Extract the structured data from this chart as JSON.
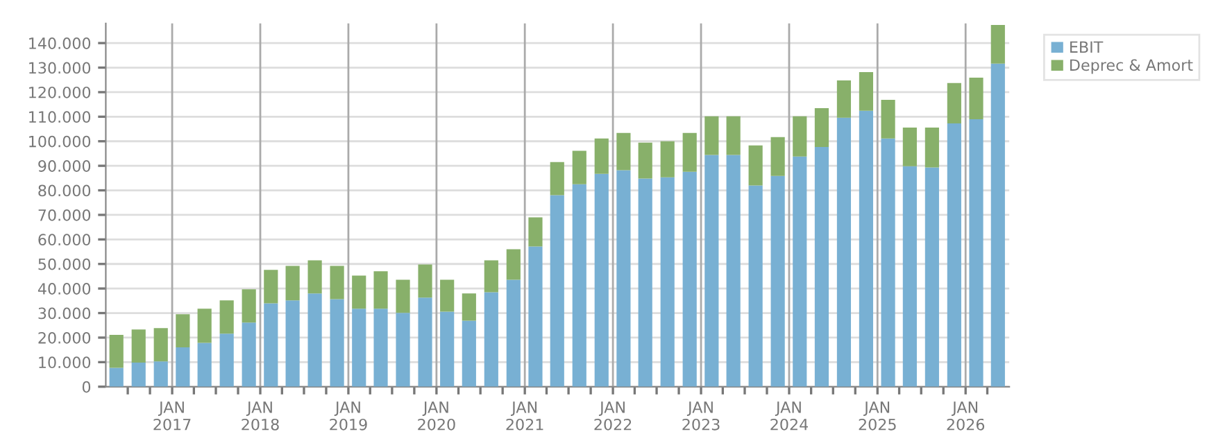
{
  "chart_data": {
    "type": "bar",
    "stacked": true,
    "x": [
      "2016-05-15",
      "2016-08-15",
      "2016-11-15",
      "2017-02-14",
      "2017-05-15",
      "2017-08-15",
      "2017-11-15",
      "2018-02-14",
      "2018-05-15",
      "2018-08-15",
      "2018-11-15",
      "2019-02-14",
      "2019-05-15",
      "2019-08-15",
      "2019-11-15",
      "2020-02-14",
      "2020-05-15",
      "2020-08-15",
      "2020-11-15",
      "2021-02-14",
      "2021-05-15",
      "2021-08-15",
      "2021-11-15",
      "2022-02-14",
      "2022-05-15",
      "2022-08-15",
      "2022-11-15",
      "2023-02-14",
      "2023-05-15",
      "2023-08-15",
      "2023-11-15",
      "2024-02-14",
      "2024-05-15",
      "2024-08-15",
      "2024-11-15",
      "2025-02-14",
      "2025-05-15",
      "2025-08-15",
      "2025-11-15",
      "2026-02-14",
      "2026-05-15"
    ],
    "series": [
      {
        "name": "EBIT",
        "color": "#78b0d3",
        "values": [
          7700,
          9800,
          10300,
          16000,
          17900,
          21600,
          26100,
          34000,
          35200,
          38000,
          35700,
          31800,
          31800,
          30100,
          36300,
          30600,
          26900,
          38500,
          43600,
          57100,
          78000,
          82500,
          86700,
          88200,
          84800,
          85300,
          87600,
          94400,
          94400,
          82000,
          85900,
          93800,
          97700,
          109600,
          112400,
          101100,
          89800,
          89300,
          107300,
          109000,
          131600
        ]
      },
      {
        "name": "Deprec & Amort",
        "color": "#88b06a",
        "values": [
          13400,
          13500,
          13600,
          13500,
          13900,
          13600,
          13600,
          13600,
          14000,
          13500,
          13500,
          13500,
          15200,
          13500,
          13500,
          13000,
          11100,
          13000,
          12400,
          11900,
          13500,
          13600,
          14400,
          15200,
          14600,
          14700,
          15800,
          15800,
          15800,
          16300,
          15800,
          16400,
          15800,
          15200,
          15800,
          15800,
          15800,
          16300,
          16400,
          16900,
          15800
        ]
      }
    ],
    "ylim": [
      0,
      148000
    ],
    "yticks": [
      0,
      {
        "value": 10000,
        "label": "10.000"
      },
      {
        "value": 20000,
        "label": "20.000"
      },
      {
        "value": 30000,
        "label": "30.000"
      },
      {
        "value": 40000,
        "label": "40.000"
      },
      {
        "value": 50000,
        "label": "50.000"
      },
      {
        "value": 60000,
        "label": "60.000"
      },
      {
        "value": 70000,
        "label": "70.000"
      },
      {
        "value": 80000,
        "label": "80.000"
      },
      {
        "value": 90000,
        "label": "90.000"
      },
      {
        "value": 100000,
        "label": "100.000"
      },
      {
        "value": 110000,
        "label": "110.000"
      },
      {
        "value": 120000,
        "label": "120.000"
      },
      {
        "value": 130000,
        "label": "130.000"
      },
      {
        "value": 140000,
        "label": "140.000"
      }
    ],
    "xlim": [
      "2016-04-01",
      "2026-07-01"
    ],
    "xticks": [
      {
        "value": "2016-07-01",
        "label": null
      },
      {
        "value": "2016-10-01",
        "label": null
      },
      {
        "value": "2017-01-01",
        "label": "JAN\n2017"
      },
      {
        "value": "2017-04-01",
        "label": null
      },
      {
        "value": "2017-07-01",
        "label": null
      },
      {
        "value": "2017-10-01",
        "label": null
      },
      {
        "value": "2018-01-01",
        "label": "JAN\n2018"
      },
      {
        "value": "2018-04-01",
        "label": null
      },
      {
        "value": "2018-07-01",
        "label": null
      },
      {
        "value": "2018-10-01",
        "label": null
      },
      {
        "value": "2019-01-01",
        "label": "JAN\n2019"
      },
      {
        "value": "2019-04-01",
        "label": null
      },
      {
        "value": "2019-07-01",
        "label": null
      },
      {
        "value": "2019-10-01",
        "label": null
      },
      {
        "value": "2020-01-01",
        "label": "JAN\n2020"
      },
      {
        "value": "2020-04-01",
        "label": null
      },
      {
        "value": "2020-07-01",
        "label": null
      },
      {
        "value": "2020-10-01",
        "label": null
      },
      {
        "value": "2021-01-01",
        "label": "JAN\n2021"
      },
      {
        "value": "2021-04-01",
        "label": null
      },
      {
        "value": "2021-07-01",
        "label": null
      },
      {
        "value": "2021-10-01",
        "label": null
      },
      {
        "value": "2022-01-01",
        "label": "JAN\n2022"
      },
      {
        "value": "2022-04-01",
        "label": null
      },
      {
        "value": "2022-07-01",
        "label": null
      },
      {
        "value": "2022-10-01",
        "label": null
      },
      {
        "value": "2023-01-01",
        "label": "JAN\n2023"
      },
      {
        "value": "2023-04-01",
        "label": null
      },
      {
        "value": "2023-07-01",
        "label": null
      },
      {
        "value": "2023-10-01",
        "label": null
      },
      {
        "value": "2024-01-01",
        "label": "JAN\n2024"
      },
      {
        "value": "2024-04-01",
        "label": null
      },
      {
        "value": "2024-07-01",
        "label": null
      },
      {
        "value": "2024-10-01",
        "label": null
      },
      {
        "value": "2025-01-01",
        "label": "JAN\n2025"
      },
      {
        "value": "2025-04-01",
        "label": null
      },
      {
        "value": "2025-07-01",
        "label": null
      },
      {
        "value": "2025-10-01",
        "label": null
      },
      {
        "value": "2026-01-01",
        "label": "JAN\n2026"
      },
      {
        "value": "2026-04-01",
        "label": null
      }
    ],
    "grid": true,
    "legend": "top right"
  }
}
